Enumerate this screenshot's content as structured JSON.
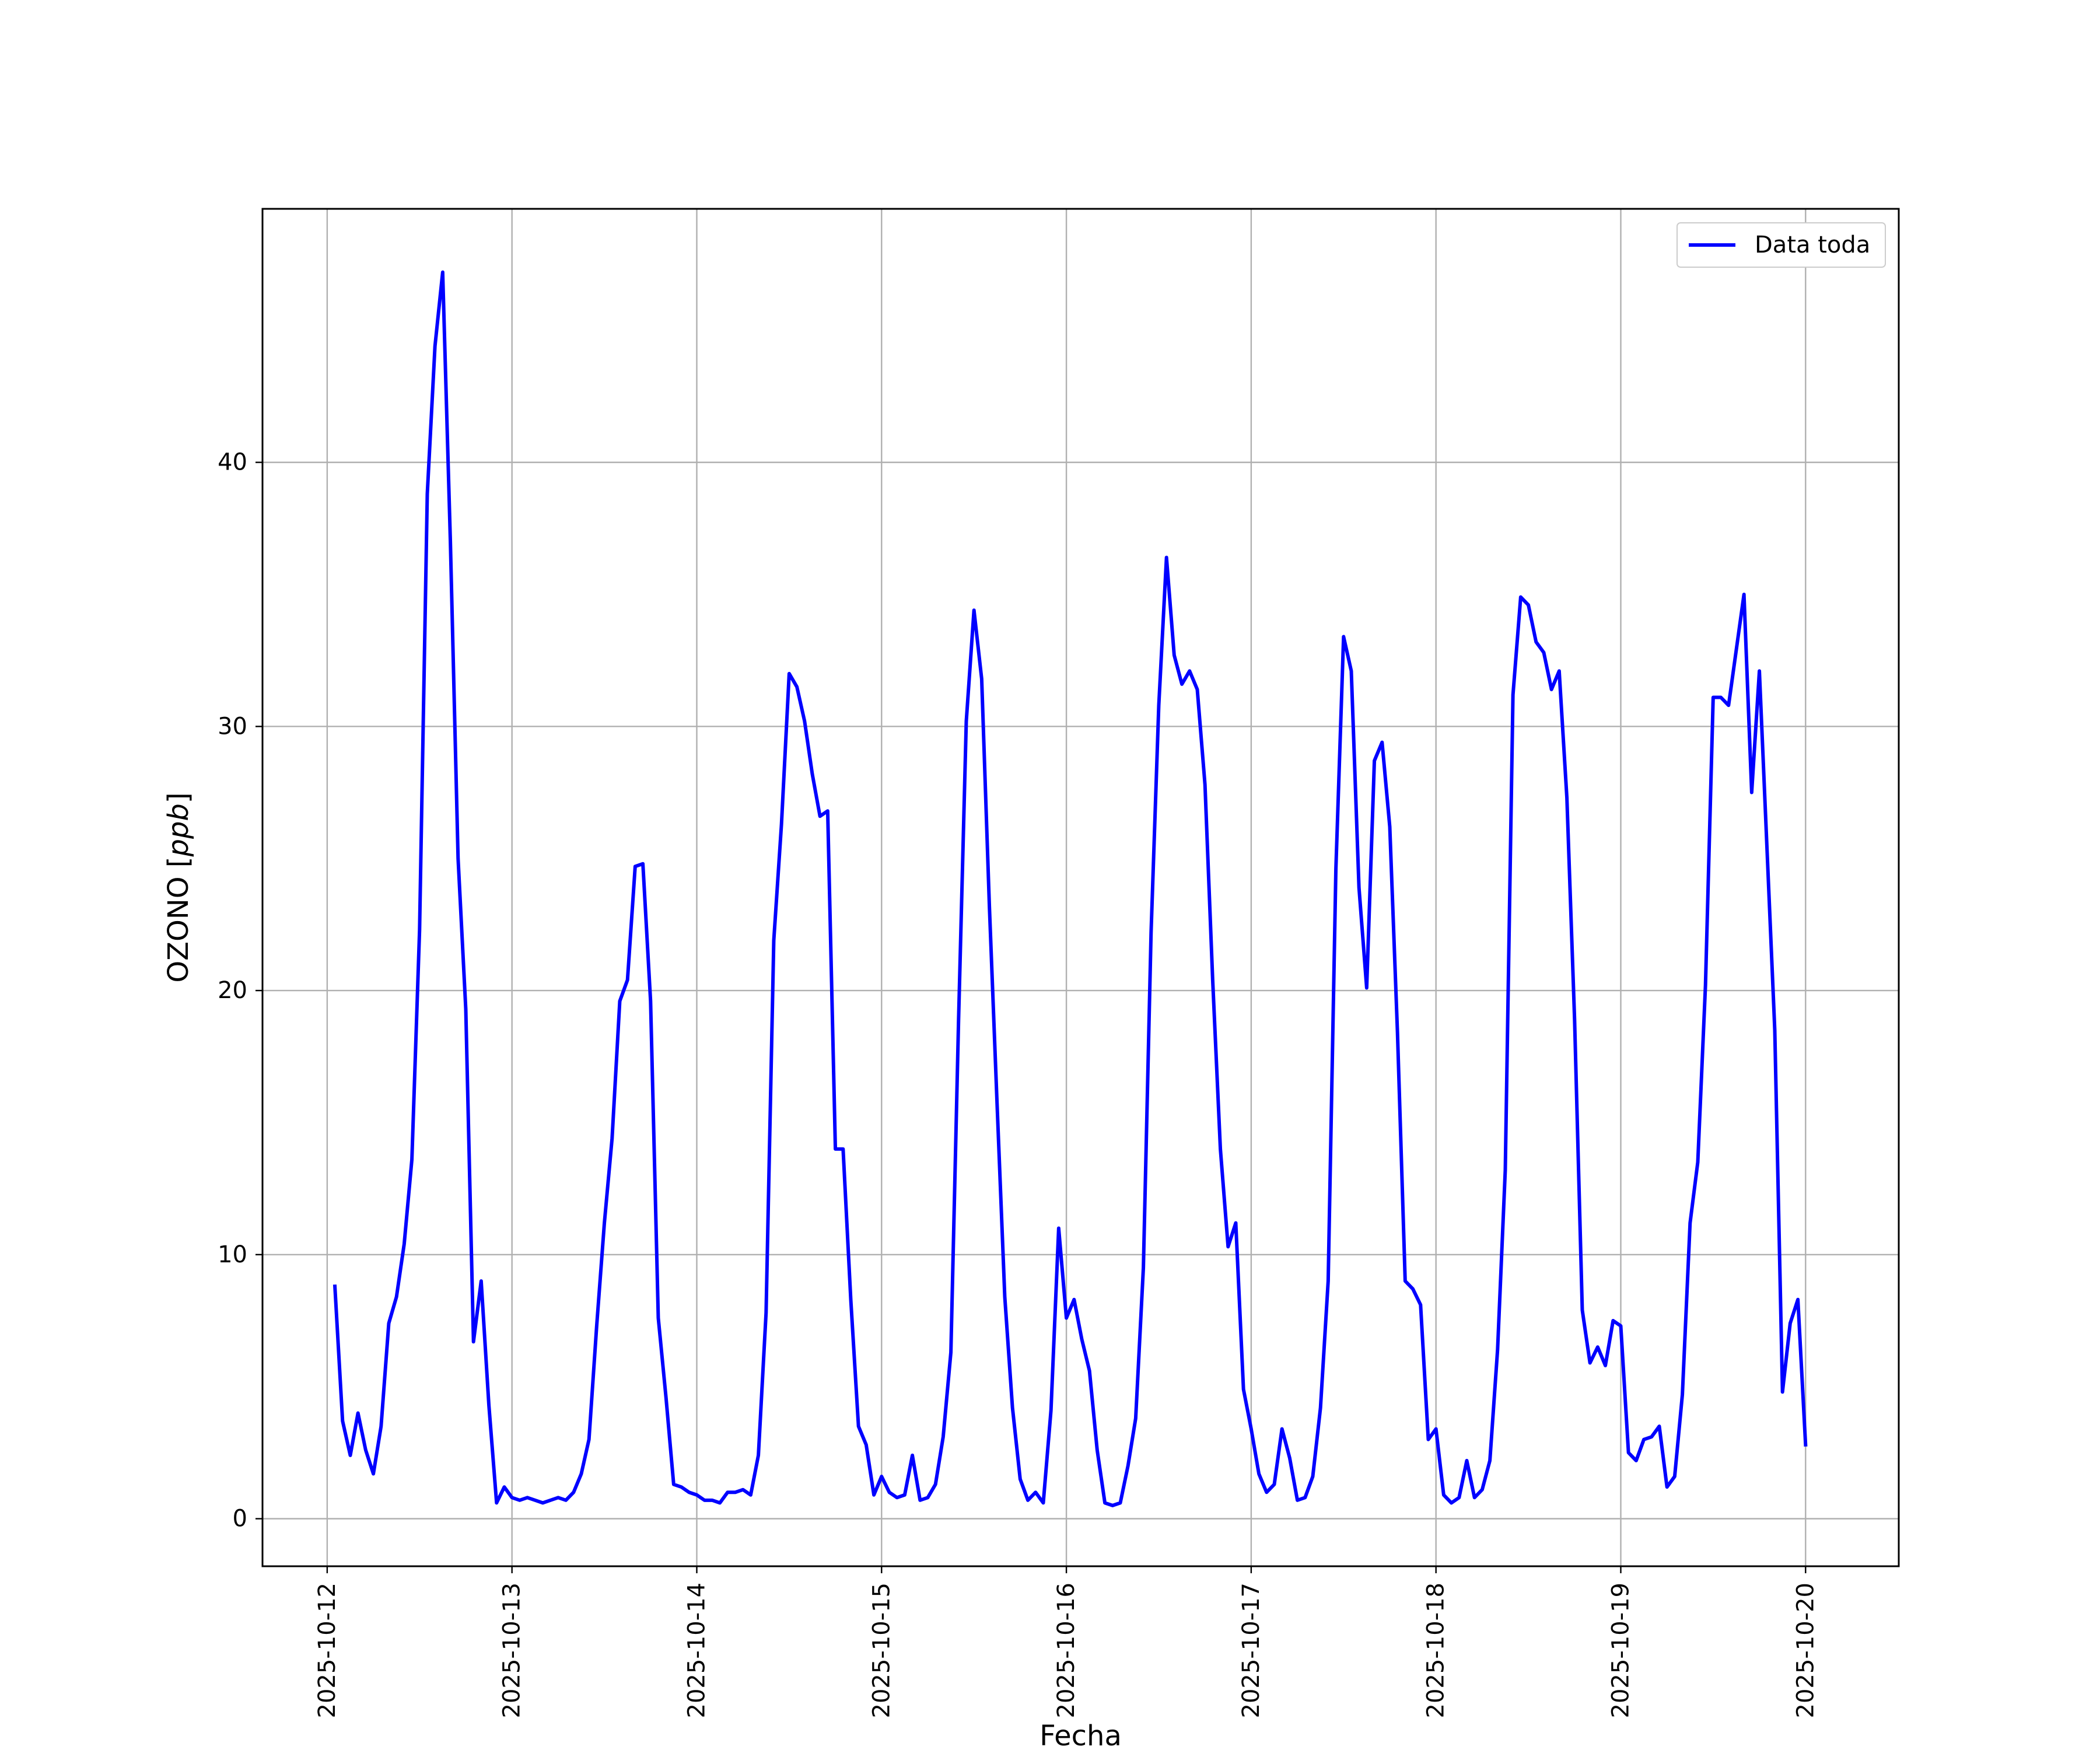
{
  "chart_data": {
    "type": "line",
    "xlabel": "Fecha",
    "ylabel": "OZONO",
    "ylabel_unit": "ppb",
    "x_ticks": [
      "2025-10-12",
      "2025-10-13",
      "2025-10-14",
      "2025-10-15",
      "2025-10-16",
      "2025-10-17",
      "2025-10-18",
      "2025-10-19",
      "2025-10-20"
    ],
    "y_ticks": [
      0,
      10,
      20,
      30,
      40
    ],
    "xlim": [
      "2025-10-11 15:36",
      "2025-10-20 12:06"
    ],
    "ylim": [
      -1.8,
      49.6
    ],
    "grid": true,
    "legend_position": "upper right",
    "series": [
      {
        "name": "Data toda",
        "color": "#0000ff",
        "x_start": "2025-10-12 01:00",
        "x_step_hours": 1,
        "values": [
          8.8,
          3.7,
          2.4,
          4.0,
          2.6,
          1.7,
          3.5,
          7.4,
          8.4,
          10.4,
          13.6,
          22.3,
          38.8,
          44.4,
          47.2,
          37.0,
          25.0,
          19.3,
          6.7,
          9.0,
          4.3,
          0.6,
          1.2,
          0.8,
          0.7,
          0.8,
          0.7,
          0.6,
          0.7,
          0.8,
          0.7,
          1.0,
          1.7,
          3.0,
          7.3,
          11.2,
          14.4,
          19.6,
          20.4,
          24.7,
          24.8,
          19.6,
          7.6,
          4.6,
          1.3,
          1.2,
          1.0,
          0.9,
          0.7,
          0.7,
          0.6,
          1.0,
          1.0,
          1.1,
          0.9,
          2.4,
          7.8,
          21.9,
          26.3,
          32.0,
          31.5,
          30.2,
          28.2,
          26.6,
          26.8,
          14.0,
          14.0,
          8.3,
          3.5,
          2.8,
          0.9,
          1.6,
          1.0,
          0.8,
          0.9,
          2.4,
          0.7,
          0.8,
          1.3,
          3.1,
          6.3,
          18.9,
          30.2,
          34.4,
          31.8,
          23.2,
          15.7,
          8.4,
          4.2,
          1.5,
          0.7,
          1.0,
          0.6,
          4.1,
          11.0,
          7.6,
          8.3,
          6.8,
          5.6,
          2.6,
          0.6,
          0.5,
          0.6,
          2.0,
          3.8,
          9.5,
          22.2,
          30.8,
          36.4,
          32.7,
          31.6,
          32.1,
          31.4,
          27.8,
          20.4,
          14.0,
          10.3,
          11.2,
          4.9,
          3.4,
          1.7,
          1.0,
          1.3,
          3.4,
          2.3,
          0.7,
          0.8,
          1.6,
          4.2,
          9.0,
          24.6,
          33.4,
          32.1,
          23.9,
          20.1,
          28.7,
          29.4,
          26.2,
          18.4,
          9.0,
          8.7,
          8.1,
          3.0,
          3.4,
          0.9,
          0.6,
          0.8,
          2.2,
          0.8,
          1.1,
          2.2,
          6.4,
          13.2,
          31.2,
          34.9,
          34.6,
          33.2,
          32.8,
          31.4,
          32.1,
          27.3,
          18.9,
          7.9,
          5.9,
          6.5,
          5.8,
          7.5,
          7.3,
          2.5,
          2.2,
          3.0,
          3.1,
          3.5,
          1.2,
          1.6,
          4.7,
          11.2,
          13.5,
          20.2,
          31.1,
          31.1,
          30.8,
          32.9,
          35.0,
          27.5,
          32.1,
          25.3,
          18.5,
          4.8,
          7.4,
          8.3,
          2.8
        ]
      }
    ]
  }
}
